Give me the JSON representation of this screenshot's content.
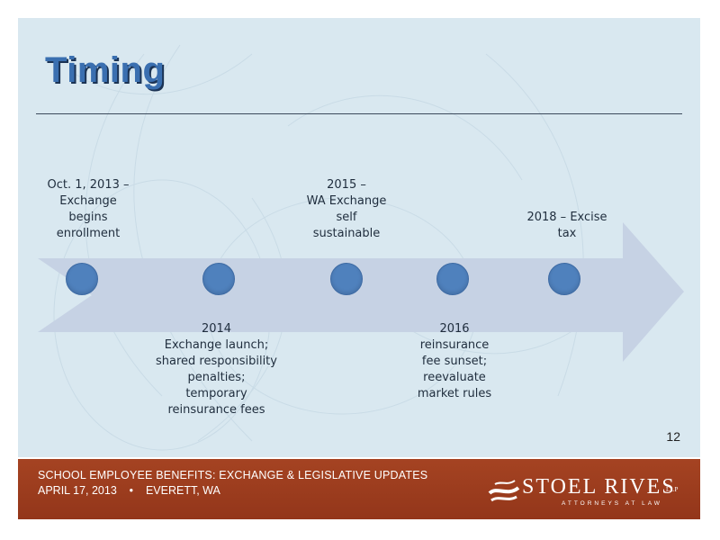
{
  "slide": {
    "title": "Timing",
    "page_number": "12"
  },
  "timeline": {
    "milestones_above": [
      {
        "text": "Oct. 1, 2013 –\nExchange\nbegins\nenrollment"
      },
      {
        "text": "2015 –\nWA Exchange\nself\nsustainable"
      },
      {
        "text": "2018 – Excise\ntax"
      }
    ],
    "milestones_below": [
      {
        "text": "2014\nExchange launch;\nshared responsibility\npenalties;\ntemporary\nreinsurance fees"
      },
      {
        "text": "2016\nreinsurance\nfee sunset;\nreevaluate\nmarket rules"
      }
    ],
    "colors": {
      "arrow": "#c6d2e4",
      "marker": "#4f81bd"
    }
  },
  "footer": {
    "title": "SCHOOL EMPLOYEE BENEFITS:  EXCHANGE & LEGISLATIVE UPDATES",
    "date": "APRIL 17, 2013    •    EVERETT, WA",
    "logo": {
      "name": "STOEL RIVES",
      "suffix": "LLP",
      "tagline": "ATTORNEYS AT LAW"
    },
    "color": "#9b3b1c"
  }
}
